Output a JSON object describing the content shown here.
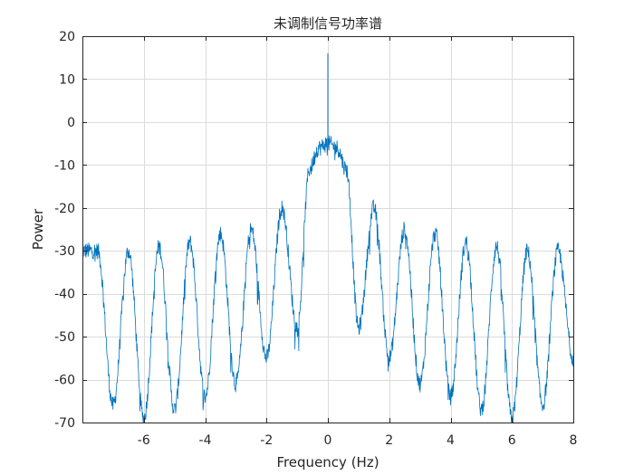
{
  "chart_data": {
    "type": "line",
    "title": "未调制信号功率谱",
    "xlabel": "Frequency (Hz)",
    "ylabel": "Power",
    "xlim": [
      -8,
      8
    ],
    "ylim": [
      -70,
      20
    ],
    "xticks": [
      -6,
      -4,
      -2,
      0,
      2,
      4,
      6,
      8
    ],
    "yticks": [
      20,
      10,
      0,
      -10,
      -20,
      -30,
      -40,
      -50,
      -60,
      -70
    ],
    "grid": true,
    "legend": "none",
    "line_color": "#0072BD",
    "series": [
      {
        "peak_at_zero": 16,
        "envelope_points": [
          [
            -8,
            -30
          ],
          [
            -7.5,
            -30
          ],
          [
            -7,
            -66
          ],
          [
            -6.5,
            -30
          ],
          [
            -6,
            -69
          ],
          [
            -5.5,
            -29
          ],
          [
            -5,
            -67
          ],
          [
            -4.5,
            -28
          ],
          [
            -4,
            -64
          ],
          [
            -3.5,
            -26
          ],
          [
            -3,
            -61
          ],
          [
            -2.5,
            -25
          ],
          [
            -2,
            -55
          ],
          [
            -1.5,
            -20
          ],
          [
            -1,
            -48
          ],
          [
            -0.6,
            -11
          ],
          [
            -0.3,
            -6
          ],
          [
            0,
            -5
          ],
          [
            0.3,
            -6
          ],
          [
            0.6,
            -11
          ],
          [
            1,
            -48
          ],
          [
            1.5,
            -20
          ],
          [
            2,
            -55
          ],
          [
            2.5,
            -25
          ],
          [
            3,
            -61
          ],
          [
            3.5,
            -26
          ],
          [
            4,
            -64
          ],
          [
            4.5,
            -28
          ],
          [
            5,
            -67
          ],
          [
            5.5,
            -29
          ],
          [
            6,
            -69
          ],
          [
            6.5,
            -30
          ],
          [
            7,
            -66
          ],
          [
            7.5,
            -30
          ],
          [
            8,
            -55
          ]
        ]
      }
    ]
  }
}
